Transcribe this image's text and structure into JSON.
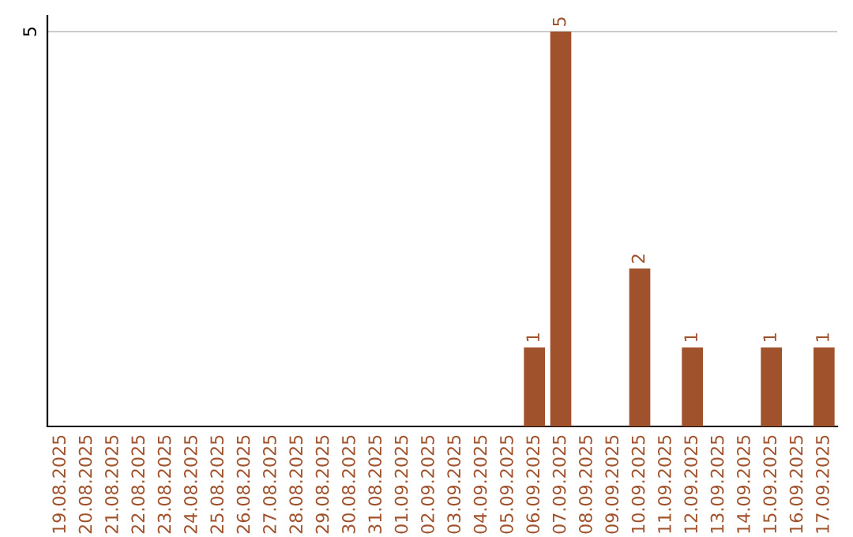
{
  "chart_data": {
    "type": "bar",
    "categories": [
      "19.08.2025",
      "20.08.2025",
      "21.08.2025",
      "22.08.2025",
      "23.08.2025",
      "24.08.2025",
      "25.08.2025",
      "26.08.2025",
      "27.08.2025",
      "28.08.2025",
      "29.08.2025",
      "30.08.2025",
      "31.08.2025",
      "01.09.2025",
      "02.09.2025",
      "03.09.2025",
      "04.09.2025",
      "05.09.2025",
      "06.09.2025",
      "07.09.2025",
      "08.09.2025",
      "09.09.2025",
      "10.09.2025",
      "11.09.2025",
      "12.09.2025",
      "13.09.2025",
      "14.09.2025",
      "15.09.2025",
      "16.09.2025",
      "17.09.2025"
    ],
    "values": [
      null,
      null,
      null,
      null,
      null,
      null,
      null,
      null,
      null,
      null,
      null,
      null,
      null,
      null,
      null,
      null,
      null,
      null,
      1,
      5,
      null,
      null,
      2,
      null,
      1,
      null,
      null,
      1,
      null,
      1
    ],
    "data_labels": true,
    "color": "#a0522d",
    "ylim": [
      0,
      5.2
    ],
    "yticks": [
      5
    ],
    "grid": "y"
  }
}
